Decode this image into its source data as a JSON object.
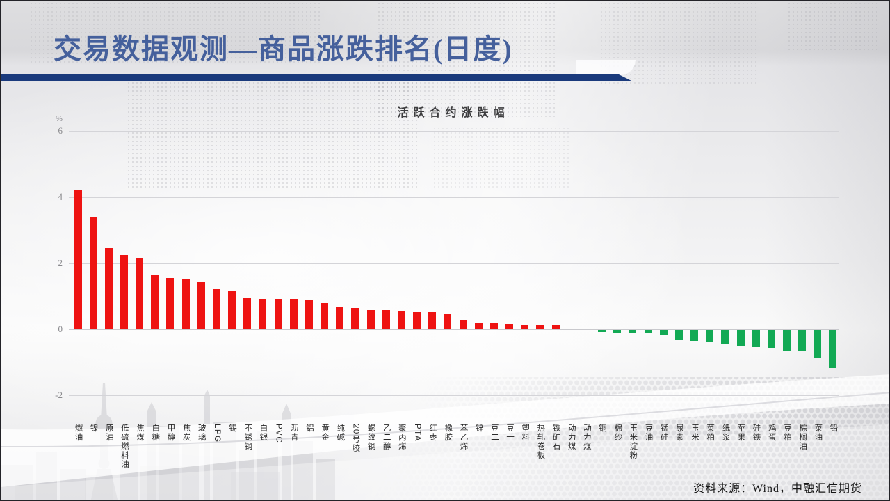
{
  "slide": {
    "title": "交易数据观测—商品涨跌排名(日度)",
    "source_note": "资料来源：Wind，中融汇信期货"
  },
  "chart_data": {
    "type": "bar",
    "title": "活跃合约涨跌幅",
    "y_axis_unit": "%",
    "ylim": [
      -2,
      6
    ],
    "yticks": [
      6,
      4,
      2,
      0,
      -2
    ],
    "grid": true,
    "legend": "none",
    "colors": {
      "positive": "#ee1312",
      "negative": "#12a954"
    },
    "categories": [
      "燃油",
      "镍",
      "原油",
      "低硫燃料油",
      "焦煤",
      "白糖",
      "甲醇",
      "焦炭",
      "玻璃",
      "LPG",
      "锡",
      "不锈钢",
      "白银",
      "PVC",
      "沥青",
      "铝",
      "黄金",
      "纯碱",
      "20号胶",
      "螺纹钢",
      "乙二醇",
      "聚丙烯",
      "PTA",
      "红枣",
      "橡胶",
      "苯乙烯",
      "锌",
      "豆二",
      "豆一",
      "塑料",
      "热轧卷板",
      "铁矿石",
      "动力煤",
      "动力煤",
      "铜",
      "棉纱",
      "玉米淀粉",
      "豆油",
      "锰硅",
      "尿素",
      "玉米",
      "菜粕",
      "纸浆",
      "苹果",
      "硅铁",
      "鸡蛋",
      "豆粕",
      "棕榈油",
      "菜油",
      "铅"
    ],
    "values": [
      4.21,
      3.38,
      2.44,
      2.25,
      2.14,
      1.65,
      1.53,
      1.52,
      1.44,
      1.21,
      1.15,
      0.94,
      0.92,
      0.9,
      0.9,
      0.88,
      0.81,
      0.68,
      0.65,
      0.56,
      0.56,
      0.54,
      0.52,
      0.5,
      0.46,
      0.27,
      0.2,
      0.19,
      0.14,
      0.13,
      0.13,
      0.12,
      0.0,
      0.0,
      -0.06,
      -0.08,
      -0.09,
      -0.1,
      -0.16,
      -0.29,
      -0.33,
      -0.38,
      -0.45,
      -0.48,
      -0.5,
      -0.55,
      -0.63,
      -0.64,
      -0.87,
      -1.15
    ]
  }
}
